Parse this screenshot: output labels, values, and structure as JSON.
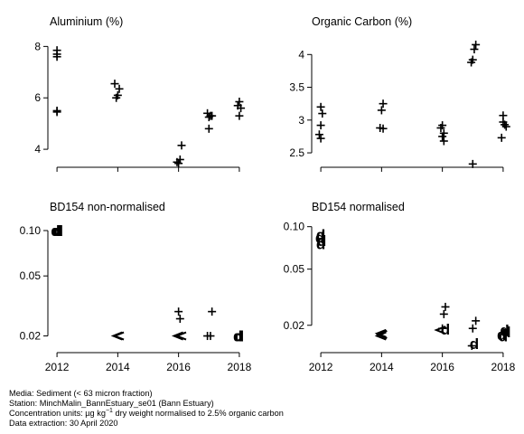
{
  "chart_data": [
    {
      "type": "scatter",
      "title": "Aluminium (%)",
      "ylim": [
        3.3,
        8.4
      ],
      "yticks": [
        4,
        6,
        8
      ],
      "xlim": [
        2011.7,
        2018.3
      ],
      "xticks": [
        2012,
        2014,
        2016,
        2018
      ],
      "points": [
        {
          "x": 2012,
          "y": 7.85,
          "m": "+"
        },
        {
          "x": 2012,
          "y": 7.7,
          "m": "+"
        },
        {
          "x": 2012,
          "y": 7.6,
          "m": "+"
        },
        {
          "x": 2012,
          "y": 5.5,
          "m": "+"
        },
        {
          "x": 2012,
          "y": 5.45,
          "m": "+"
        },
        {
          "x": 2013.9,
          "y": 6.55,
          "m": "+"
        },
        {
          "x": 2014.05,
          "y": 6.35,
          "m": "+"
        },
        {
          "x": 2014,
          "y": 6.1,
          "m": "+"
        },
        {
          "x": 2013.95,
          "y": 6.0,
          "m": "+"
        },
        {
          "x": 2015.95,
          "y": 3.5,
          "m": "+"
        },
        {
          "x": 2016,
          "y": 3.45,
          "m": "+"
        },
        {
          "x": 2016.05,
          "y": 3.6,
          "m": "+"
        },
        {
          "x": 2016.1,
          "y": 4.15,
          "m": "+"
        },
        {
          "x": 2016.95,
          "y": 5.4,
          "m": "+"
        },
        {
          "x": 2017.05,
          "y": 5.3,
          "m": "+"
        },
        {
          "x": 2017,
          "y": 5.25,
          "m": "+"
        },
        {
          "x": 2017.1,
          "y": 5.3,
          "m": "+"
        },
        {
          "x": 2017,
          "y": 4.8,
          "m": "+"
        },
        {
          "x": 2018,
          "y": 5.85,
          "m": "+"
        },
        {
          "x": 2017.95,
          "y": 5.7,
          "m": "+"
        },
        {
          "x": 2018.05,
          "y": 5.6,
          "m": "+"
        },
        {
          "x": 2018,
          "y": 5.3,
          "m": "+"
        }
      ]
    },
    {
      "type": "scatter",
      "title": "Organic Carbon (%)",
      "ylim": [
        2.28,
        4.28
      ],
      "yticks": [
        2.5,
        3.0,
        3.5,
        4.0
      ],
      "xlim": [
        2011.7,
        2018.3
      ],
      "xticks": [
        2012,
        2014,
        2016,
        2018
      ],
      "points": [
        {
          "x": 2012,
          "y": 3.2,
          "m": "+"
        },
        {
          "x": 2012.05,
          "y": 3.1,
          "m": "+"
        },
        {
          "x": 2012,
          "y": 2.92,
          "m": "+"
        },
        {
          "x": 2011.95,
          "y": 2.78,
          "m": "+"
        },
        {
          "x": 2012,
          "y": 2.72,
          "m": "+"
        },
        {
          "x": 2014.05,
          "y": 3.25,
          "m": "+"
        },
        {
          "x": 2014,
          "y": 3.15,
          "m": "+"
        },
        {
          "x": 2013.95,
          "y": 2.88,
          "m": "+"
        },
        {
          "x": 2014.05,
          "y": 2.87,
          "m": "+"
        },
        {
          "x": 2016,
          "y": 2.92,
          "m": "+"
        },
        {
          "x": 2015.95,
          "y": 2.88,
          "m": "+"
        },
        {
          "x": 2016.05,
          "y": 2.8,
          "m": "+"
        },
        {
          "x": 2016,
          "y": 2.75,
          "m": "+"
        },
        {
          "x": 2016.05,
          "y": 2.68,
          "m": "+"
        },
        {
          "x": 2017.1,
          "y": 4.15,
          "m": "+"
        },
        {
          "x": 2017.05,
          "y": 4.08,
          "m": "+"
        },
        {
          "x": 2017,
          "y": 3.92,
          "m": "+"
        },
        {
          "x": 2016.95,
          "y": 3.88,
          "m": "+"
        },
        {
          "x": 2017,
          "y": 2.33,
          "m": "+"
        },
        {
          "x": 2018,
          "y": 3.07,
          "m": "+"
        },
        {
          "x": 2018,
          "y": 2.97,
          "m": "+"
        },
        {
          "x": 2018.05,
          "y": 2.93,
          "m": "+"
        },
        {
          "x": 2018.1,
          "y": 2.9,
          "m": "+"
        },
        {
          "x": 2017.95,
          "y": 2.73,
          "m": "+"
        }
      ]
    },
    {
      "type": "scatter",
      "title": "BD154 non-normalised",
      "scale": "log",
      "ylim": [
        0.0155,
        0.118
      ],
      "yticks": [
        0.02,
        0.05,
        0.1
      ],
      "yticklabels": [
        "0.02",
        "0.05",
        "0.10"
      ],
      "xlim": [
        2011.7,
        2018.3
      ],
      "xticks": [
        2012,
        2014,
        2016,
        2018
      ],
      "points": [
        {
          "x": 2012,
          "y": 0.1,
          "m": "d"
        },
        {
          "x": 2011.95,
          "y": 0.1,
          "m": "d"
        },
        {
          "x": 2012.05,
          "y": 0.1,
          "m": "d"
        },
        {
          "x": 2014,
          "y": 0.02,
          "m": "<"
        },
        {
          "x": 2014.05,
          "y": 0.02,
          "m": "<"
        },
        {
          "x": 2016,
          "y": 0.029,
          "m": "+"
        },
        {
          "x": 2016.05,
          "y": 0.026,
          "m": "+"
        },
        {
          "x": 2016,
          "y": 0.02,
          "m": "<"
        },
        {
          "x": 2016.1,
          "y": 0.02,
          "m": "<"
        },
        {
          "x": 2017.1,
          "y": 0.029,
          "m": "+"
        },
        {
          "x": 2016.95,
          "y": 0.02,
          "m": "+"
        },
        {
          "x": 2017.05,
          "y": 0.02,
          "m": "+"
        },
        {
          "x": 2018,
          "y": 0.02,
          "m": "d"
        },
        {
          "x": 2017.95,
          "y": 0.02,
          "m": "d"
        }
      ]
    },
    {
      "type": "scatter",
      "title": "BD154 normalised",
      "scale": "log",
      "ylim": [
        0.0128,
        0.112
      ],
      "yticks": [
        0.02,
        0.05,
        0.1
      ],
      "yticklabels": [
        "0.02",
        "0.05",
        "0.10"
      ],
      "xlim": [
        2011.7,
        2018.3
      ],
      "xticks": [
        2012,
        2014,
        2016,
        2018
      ],
      "points": [
        {
          "x": 2012,
          "y": 0.088,
          "m": "d"
        },
        {
          "x": 2011.97,
          "y": 0.084,
          "m": "d"
        },
        {
          "x": 2012.03,
          "y": 0.08,
          "m": "d"
        },
        {
          "x": 2012,
          "y": 0.076,
          "m": "d"
        },
        {
          "x": 2014,
          "y": 0.0175,
          "m": "<"
        },
        {
          "x": 2014,
          "y": 0.0168,
          "m": "<"
        },
        {
          "x": 2014.03,
          "y": 0.0172,
          "m": "<"
        },
        {
          "x": 2016.1,
          "y": 0.027,
          "m": "+"
        },
        {
          "x": 2016.05,
          "y": 0.024,
          "m": "+"
        },
        {
          "x": 2016,
          "y": 0.019,
          "m": "+"
        },
        {
          "x": 2016.1,
          "y": 0.0188,
          "m": "d"
        },
        {
          "x": 2015.95,
          "y": 0.0185,
          "m": "<"
        },
        {
          "x": 2017.1,
          "y": 0.0215,
          "m": "+"
        },
        {
          "x": 2017,
          "y": 0.019,
          "m": "+"
        },
        {
          "x": 2017.05,
          "y": 0.0148,
          "m": "d"
        },
        {
          "x": 2016.97,
          "y": 0.0143,
          "m": "+"
        },
        {
          "x": 2018.05,
          "y": 0.0185,
          "m": "d"
        },
        {
          "x": 2018.1,
          "y": 0.018,
          "m": "d"
        },
        {
          "x": 2017.95,
          "y": 0.0172,
          "m": "d"
        },
        {
          "x": 2018,
          "y": 0.0168,
          "m": "d"
        }
      ]
    }
  ],
  "caption": {
    "line1": "Media: Sediment (< 63 micron fraction)",
    "line2": "Station: MinchMalin_BannEstuary_se01 (Bann Estuary)",
    "line3_pre": "Concentration units:  µg kg",
    "line3_sup": "−1",
    "line3_post": " dry weight normalised to 2.5% organic carbon",
    "line4": "Data extraction: 30 April 2020"
  }
}
